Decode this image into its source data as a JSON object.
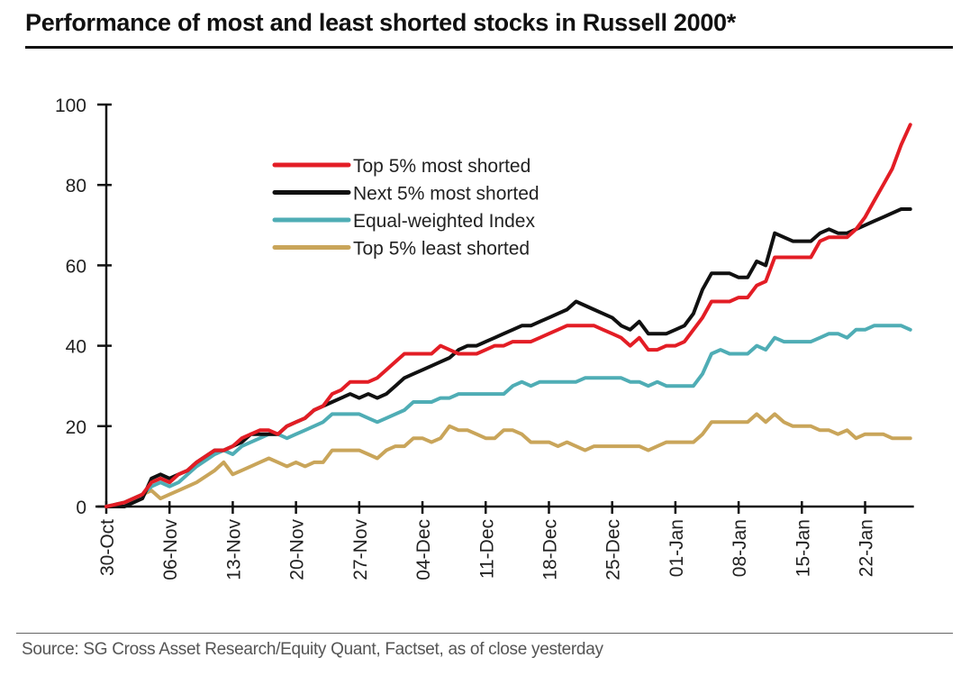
{
  "chart_data": {
    "type": "line",
    "title": "Performance of most and least shorted stocks in Russell 2000*",
    "source": "Source: SG Cross Asset Research/Equity Quant, Factset, as of close yesterday",
    "xlabel": "",
    "ylabel": "",
    "ylim": [
      0,
      100
    ],
    "yticks": [
      0,
      20,
      40,
      60,
      80,
      100
    ],
    "x_unit": "days since 30-Oct",
    "xlim": [
      0,
      89
    ],
    "xticks": [
      {
        "day": 0,
        "label": "30-Oct"
      },
      {
        "day": 7,
        "label": "06-Nov"
      },
      {
        "day": 14,
        "label": "13-Nov"
      },
      {
        "day": 21,
        "label": "20-Nov"
      },
      {
        "day": 28,
        "label": "27-Nov"
      },
      {
        "day": 35,
        "label": "04-Dec"
      },
      {
        "day": 42,
        "label": "11-Dec"
      },
      {
        "day": 49,
        "label": "18-Dec"
      },
      {
        "day": 56,
        "label": "25-Dec"
      },
      {
        "day": 63,
        "label": "01-Jan"
      },
      {
        "day": 70,
        "label": "08-Jan"
      },
      {
        "day": 77,
        "label": "15-Jan"
      },
      {
        "day": 84,
        "label": "22-Jan"
      }
    ],
    "grid": false,
    "legend_position": "top-left",
    "series": [
      {
        "name": "Top 5% most shorted",
        "color": "#e31d25",
        "x": [
          0,
          2,
          4,
          5,
          6,
          7,
          8,
          9,
          10,
          12,
          13,
          14,
          15,
          16,
          17,
          18,
          19,
          20,
          21,
          22,
          23,
          24,
          25,
          26,
          27,
          28,
          29,
          30,
          31,
          32,
          33,
          34,
          35,
          36,
          37,
          38,
          39,
          40,
          41,
          42,
          43,
          44,
          45,
          46,
          47,
          48,
          49,
          50,
          51,
          52,
          53,
          54,
          55,
          56,
          57,
          58,
          59,
          60,
          61,
          62,
          63,
          64,
          65,
          66,
          67,
          68,
          69,
          70,
          71,
          72,
          73,
          74,
          75,
          76,
          77,
          78,
          79,
          80,
          81,
          82,
          83,
          84,
          85,
          86,
          87,
          88,
          89
        ],
        "y": [
          0,
          1,
          3,
          6,
          7,
          6,
          8,
          9,
          11,
          14,
          14,
          15,
          17,
          18,
          19,
          19,
          18,
          20,
          21,
          22,
          24,
          25,
          28,
          29,
          31,
          31,
          31,
          32,
          34,
          36,
          38,
          38,
          38,
          38,
          40,
          39,
          38,
          38,
          38,
          39,
          40,
          40,
          41,
          41,
          41,
          42,
          43,
          44,
          45,
          45,
          45,
          45,
          44,
          43,
          42,
          40,
          42,
          39,
          39,
          40,
          40,
          41,
          44,
          47,
          51,
          51,
          51,
          52,
          52,
          55,
          56,
          62,
          62,
          62,
          62,
          62,
          66,
          67,
          67,
          67,
          69,
          72,
          76,
          80,
          84,
          90,
          95
        ]
      },
      {
        "name": "Next 5% most shorted",
        "color": "#111111",
        "x": [
          0,
          2,
          4,
          5,
          6,
          7,
          8,
          9,
          10,
          12,
          13,
          14,
          15,
          16,
          17,
          18,
          19,
          20,
          21,
          22,
          23,
          24,
          25,
          26,
          27,
          28,
          29,
          30,
          31,
          32,
          33,
          34,
          35,
          36,
          37,
          38,
          39,
          40,
          41,
          42,
          43,
          44,
          45,
          46,
          47,
          48,
          49,
          50,
          51,
          52,
          53,
          54,
          55,
          56,
          57,
          58,
          59,
          60,
          61,
          62,
          63,
          64,
          65,
          66,
          67,
          68,
          69,
          70,
          71,
          72,
          73,
          74,
          75,
          76,
          77,
          78,
          79,
          80,
          81,
          82,
          83,
          84,
          85,
          86,
          87,
          88,
          89
        ],
        "y": [
          0,
          0,
          2,
          7,
          8,
          7,
          8,
          9,
          11,
          14,
          14,
          15,
          16,
          18,
          18,
          18,
          18,
          20,
          21,
          22,
          24,
          25,
          26,
          27,
          28,
          27,
          28,
          27,
          28,
          30,
          32,
          33,
          34,
          35,
          36,
          37,
          39,
          40,
          40,
          41,
          42,
          43,
          44,
          45,
          45,
          46,
          47,
          48,
          49,
          51,
          50,
          49,
          48,
          47,
          45,
          44,
          46,
          43,
          43,
          43,
          44,
          45,
          48,
          54,
          58,
          58,
          58,
          57,
          57,
          61,
          60,
          68,
          67,
          66,
          66,
          66,
          68,
          69,
          68,
          68,
          69,
          70,
          71,
          72,
          73,
          74,
          74
        ]
      },
      {
        "name": "Equal-weighted Index",
        "color": "#4fadb5",
        "x": [
          0,
          2,
          4,
          5,
          6,
          7,
          8,
          9,
          10,
          12,
          13,
          14,
          15,
          16,
          17,
          18,
          19,
          20,
          21,
          22,
          23,
          24,
          25,
          26,
          27,
          28,
          29,
          30,
          31,
          32,
          33,
          34,
          35,
          36,
          37,
          38,
          39,
          40,
          41,
          42,
          43,
          44,
          45,
          46,
          47,
          48,
          49,
          50,
          51,
          52,
          53,
          54,
          55,
          56,
          57,
          58,
          59,
          60,
          61,
          62,
          63,
          64,
          65,
          66,
          67,
          68,
          69,
          70,
          71,
          72,
          73,
          74,
          75,
          76,
          77,
          78,
          79,
          80,
          81,
          82,
          83,
          84,
          85,
          86,
          87,
          88,
          89
        ],
        "y": [
          0,
          1,
          3,
          5,
          6,
          5,
          6,
          8,
          10,
          13,
          14,
          13,
          15,
          16,
          17,
          18,
          18,
          17,
          18,
          19,
          20,
          21,
          23,
          23,
          23,
          23,
          22,
          21,
          22,
          23,
          24,
          26,
          26,
          26,
          27,
          27,
          28,
          28,
          28,
          28,
          28,
          28,
          30,
          31,
          30,
          31,
          31,
          31,
          31,
          31,
          32,
          32,
          32,
          32,
          32,
          31,
          31,
          30,
          31,
          30,
          30,
          30,
          30,
          33,
          38,
          39,
          38,
          38,
          38,
          40,
          39,
          42,
          41,
          41,
          41,
          41,
          42,
          43,
          43,
          42,
          44,
          44,
          45,
          45,
          45,
          45,
          44
        ]
      },
      {
        "name": "Top 5% least shorted",
        "color": "#c9a55a",
        "x": [
          0,
          2,
          4,
          5,
          6,
          7,
          8,
          9,
          10,
          12,
          13,
          14,
          15,
          16,
          17,
          18,
          19,
          20,
          21,
          22,
          23,
          24,
          25,
          26,
          27,
          28,
          29,
          30,
          31,
          32,
          33,
          34,
          35,
          36,
          37,
          38,
          39,
          40,
          41,
          42,
          43,
          44,
          45,
          46,
          47,
          48,
          49,
          50,
          51,
          52,
          53,
          54,
          55,
          56,
          57,
          58,
          59,
          60,
          61,
          62,
          63,
          64,
          65,
          66,
          67,
          68,
          69,
          70,
          71,
          72,
          73,
          74,
          75,
          76,
          77,
          78,
          79,
          80,
          81,
          82,
          83,
          84,
          85,
          86,
          87,
          88,
          89
        ],
        "y": [
          0,
          1,
          3,
          4,
          2,
          3,
          4,
          5,
          6,
          9,
          11,
          8,
          9,
          10,
          11,
          12,
          11,
          10,
          11,
          10,
          11,
          11,
          14,
          14,
          14,
          14,
          13,
          12,
          14,
          15,
          15,
          17,
          17,
          16,
          17,
          20,
          19,
          19,
          18,
          17,
          17,
          19,
          19,
          18,
          16,
          16,
          16,
          15,
          16,
          15,
          14,
          15,
          15,
          15,
          15,
          15,
          15,
          14,
          15,
          16,
          16,
          16,
          16,
          18,
          21,
          21,
          21,
          21,
          21,
          23,
          21,
          23,
          21,
          20,
          20,
          20,
          19,
          19,
          18,
          19,
          17,
          18,
          18,
          18,
          17,
          17,
          17
        ]
      }
    ]
  }
}
